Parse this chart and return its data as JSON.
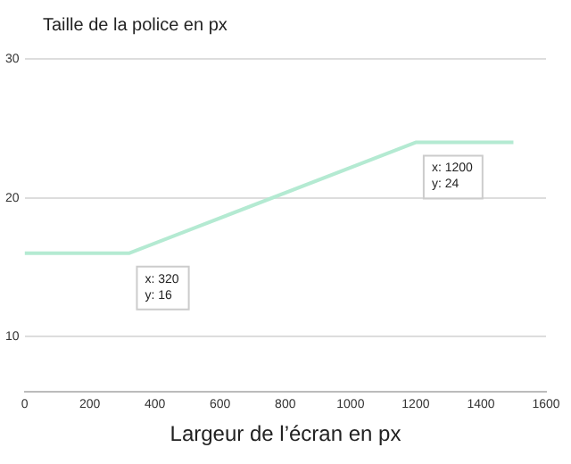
{
  "chart_data": {
    "type": "line",
    "ylabel": "Taille de la police en px",
    "xlabel": "Largeur de l’écran en px",
    "x": [
      0,
      320,
      1200,
      1500
    ],
    "series": [
      {
        "color": "#b4ead2",
        "values": [
          16,
          16,
          24,
          24
        ]
      }
    ],
    "xlim": [
      0,
      1600
    ],
    "xticks": [
      0,
      200,
      400,
      600,
      800,
      1000,
      1200,
      1400,
      1600
    ],
    "ylim": [
      6,
      30
    ],
    "yticks": [
      10,
      20,
      30
    ],
    "grid": "y",
    "legend": false,
    "marker": "none",
    "line_style": "solid",
    "annotations": [
      {
        "text": "x: 320\ny: 16",
        "x": 320,
        "y": 16
      },
      {
        "text": "x: 1200\ny: 24",
        "x": 1200,
        "y": 24
      }
    ]
  }
}
